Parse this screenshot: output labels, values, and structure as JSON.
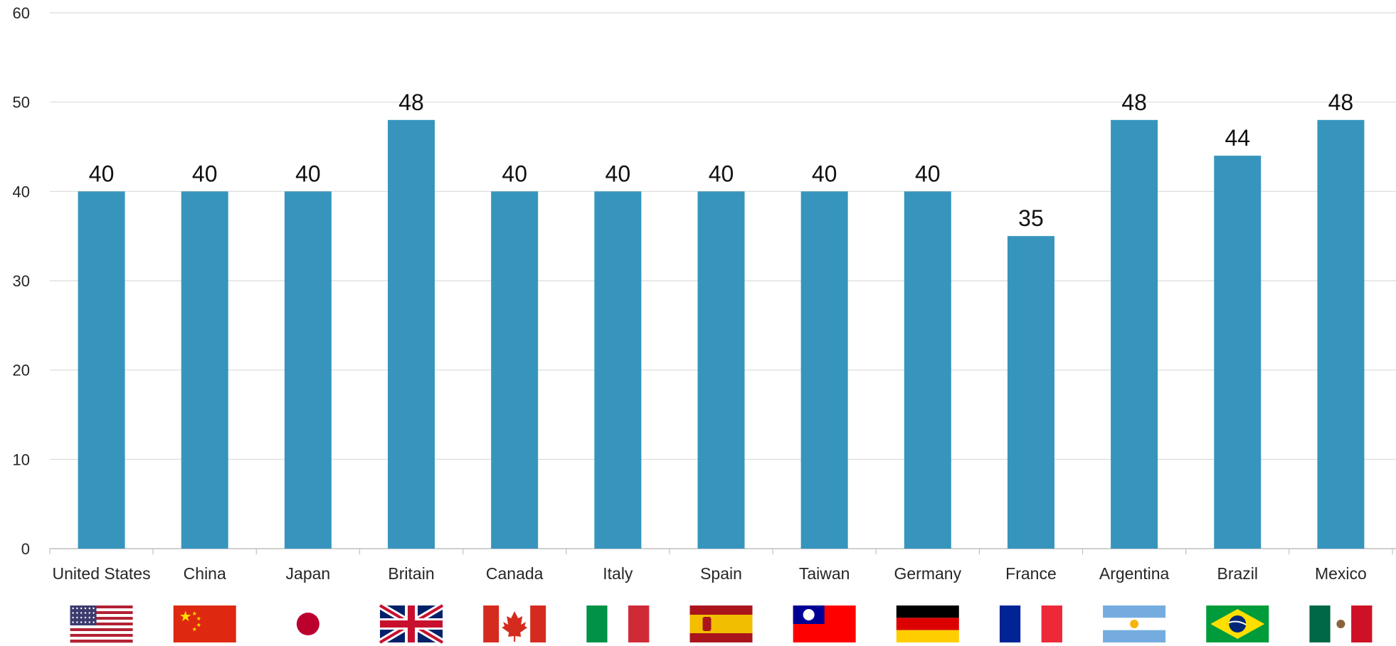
{
  "chart_data": {
    "type": "bar",
    "title": "",
    "xlabel": "",
    "ylabel": "",
    "ylim": [
      0,
      60
    ],
    "yticks": [
      0,
      10,
      20,
      30,
      40,
      50,
      60
    ],
    "grid": true,
    "categories": [
      "United States",
      "China",
      "Japan",
      "Britain",
      "Canada",
      "Italy",
      "Spain",
      "Taiwan",
      "Germany",
      "France",
      "Argentina",
      "Brazil",
      "Mexico"
    ],
    "values": [
      40,
      40,
      40,
      48,
      40,
      40,
      40,
      40,
      40,
      35,
      48,
      44,
      48
    ],
    "data_labels": true,
    "bar_color": "#3795bd",
    "flags": [
      "us-flag-icon",
      "china-flag-icon",
      "japan-flag-icon",
      "britain-flag-icon",
      "canada-flag-icon",
      "italy-flag-icon",
      "spain-flag-icon",
      "taiwan-flag-icon",
      "germany-flag-icon",
      "france-flag-icon",
      "argentina-flag-icon",
      "brazil-flag-icon",
      "mexico-flag-icon"
    ]
  }
}
